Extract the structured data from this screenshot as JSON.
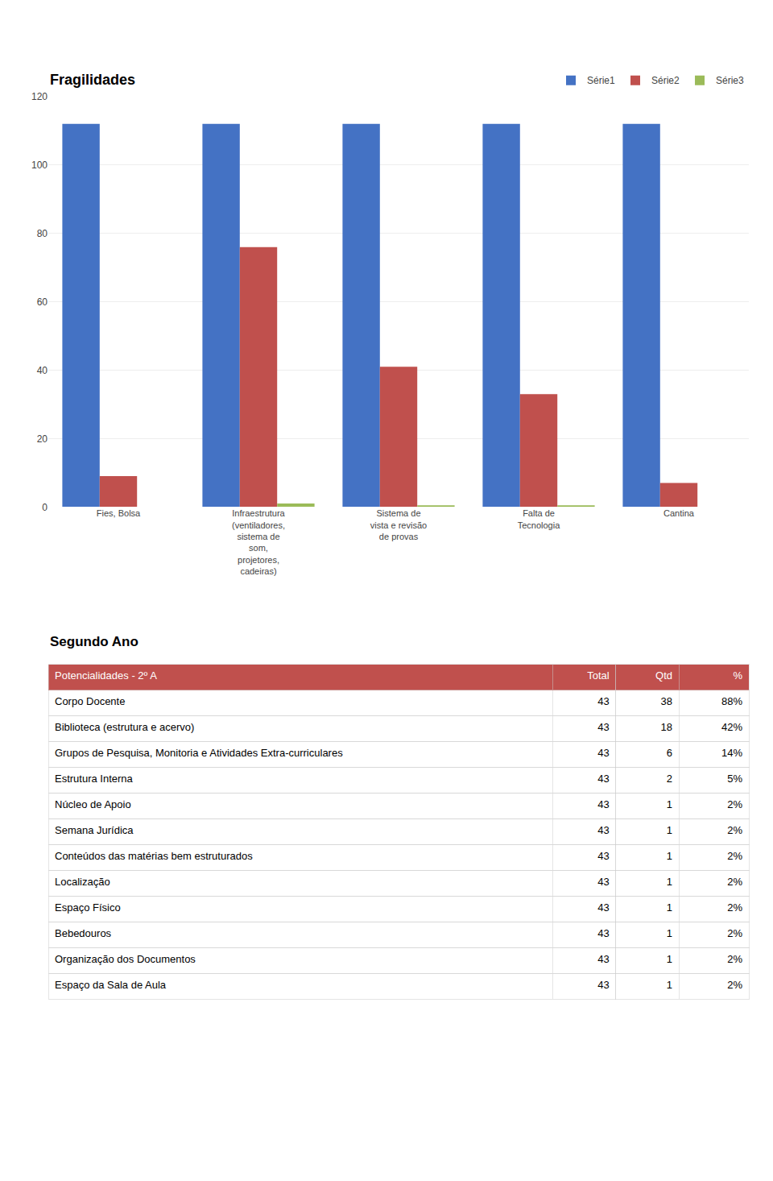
{
  "chart_data": [
    {
      "type": "bar",
      "title": "Fragilidades",
      "categories": [
        "Fies, Bolsa",
        "Infraestrutura\n(ventiladores,\nsistema de\nsom,\nprojetores,\ncadeiras)",
        "Sistema de\nvista e revisão\nde provas",
        "Falta de\nTecnologia",
        "Cantina"
      ],
      "series": [
        {
          "name": "Série1",
          "color": "#4472C4",
          "values": [
            112,
            112,
            112,
            112,
            112
          ]
        },
        {
          "name": "Série2",
          "color": "#C0504D",
          "values": [
            9,
            76,
            41,
            33,
            7
          ]
        },
        {
          "name": "Série3",
          "color": "#9BBB59",
          "values": [
            0,
            1,
            0.5,
            0.5,
            0
          ]
        }
      ],
      "ylim": [
        0,
        120
      ],
      "yticks": [
        0,
        20,
        40,
        60,
        80,
        100,
        120
      ],
      "grid": true,
      "legend": "upper right"
    },
    {
      "type": "table",
      "title": "Segundo Ano",
      "color": "#C0504D",
      "header": [
        "Potencialidades - 2º A",
        "Total",
        "Qtd",
        "%"
      ],
      "rows": [
        [
          "Corpo Docente",
          "43",
          "38",
          "88%"
        ],
        [
          "Biblioteca (estrutura e acervo)",
          "43",
          "18",
          "42%"
        ],
        [
          "Grupos de Pesquisa, Monitoria e Atividades Extra-curriculares",
          "43",
          "6",
          "14%"
        ],
        [
          "Estrutura Interna",
          "43",
          "2",
          "5%"
        ],
        [
          "Núcleo de Apoio",
          "43",
          "1",
          "2%"
        ],
        [
          "Semana Jurídica",
          "43",
          "1",
          "2%"
        ],
        [
          "Conteúdos das matérias bem estruturados",
          "43",
          "1",
          "2%"
        ],
        [
          "Localização",
          "43",
          "1",
          "2%"
        ],
        [
          "Espaço Físico",
          "43",
          "1",
          "2%"
        ],
        [
          "Bebedouros",
          "43",
          "1",
          "2%"
        ],
        [
          "Organização dos Documentos",
          "43",
          "1",
          "2%"
        ],
        [
          "Espaço da Sala de Aula",
          "43",
          "1",
          "2%"
        ]
      ]
    }
  ]
}
